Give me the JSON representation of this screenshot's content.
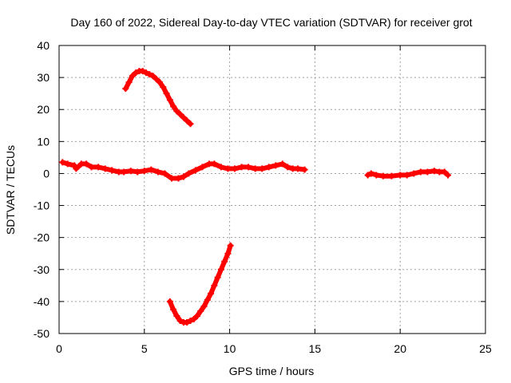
{
  "chart_data": {
    "type": "scatter",
    "title": "Day 160 of 2022, Sidereal Day-to-day VTEC variation (SDTVAR) for receiver grot",
    "xlabel": "GPS time / hours",
    "ylabel": "SDTVAR / TECUs",
    "xlim": [
      0,
      25
    ],
    "ylim": [
      -50,
      40
    ],
    "xticks": [
      0,
      5,
      10,
      15,
      20,
      25
    ],
    "yticks": [
      -50,
      -40,
      -30,
      -20,
      -10,
      0,
      10,
      20,
      30,
      40
    ],
    "grid": true,
    "marker_color": "#ff0000",
    "series": [
      {
        "name": "segment-near-zero-1",
        "x": [
          0.2,
          0.5,
          0.9,
          1.0,
          1.3,
          1.6,
          1.9,
          2.3,
          2.7,
          3.1,
          3.5,
          3.8,
          4.2,
          4.6,
          5.0,
          5.4,
          5.8,
          6.2,
          6.6,
          7.0,
          7.3,
          7.6,
          8.0,
          8.4,
          8.8,
          9.1,
          9.5,
          9.9,
          10.3,
          10.7,
          11.1,
          11.5,
          11.9,
          12.3,
          12.7,
          13.1,
          13.4,
          13.7,
          14.0,
          14.4
        ],
        "y": [
          3.5,
          3.0,
          2.5,
          1.5,
          3.0,
          3.0,
          2.0,
          2.0,
          1.5,
          1.0,
          0.5,
          0.5,
          0.8,
          0.5,
          0.8,
          1.2,
          0.5,
          0.0,
          -1.5,
          -1.5,
          -1.0,
          0.0,
          1.0,
          2.0,
          3.0,
          3.0,
          2.0,
          1.5,
          1.5,
          2.0,
          2.0,
          1.5,
          1.5,
          2.0,
          2.5,
          3.0,
          2.0,
          1.5,
          1.5,
          1.2
        ]
      },
      {
        "name": "segment-near-zero-2",
        "x": [
          18.1,
          18.3,
          18.6,
          19.0,
          19.5,
          20.0,
          20.4,
          20.8,
          21.2,
          21.6,
          22.0,
          22.3,
          22.6,
          22.8
        ],
        "y": [
          -0.5,
          0.0,
          -0.5,
          -0.8,
          -0.8,
          -0.5,
          -0.5,
          0.0,
          0.5,
          0.5,
          0.8,
          0.5,
          0.5,
          -0.5
        ]
      },
      {
        "name": "arc-upper",
        "x": [
          3.9,
          4.1,
          4.3,
          4.5,
          4.7,
          4.9,
          5.1,
          5.3,
          5.5,
          5.7,
          5.9,
          6.1,
          6.3,
          6.5,
          6.7,
          6.9,
          7.1,
          7.3,
          7.5,
          7.7
        ],
        "y": [
          26.5,
          28.5,
          30.5,
          31.5,
          32.0,
          32.0,
          31.5,
          31.0,
          30.5,
          29.5,
          28.5,
          27.0,
          25.0,
          23.0,
          21.0,
          19.5,
          18.5,
          17.5,
          16.5,
          15.5
        ]
      },
      {
        "name": "arc-lower",
        "x": [
          6.5,
          6.7,
          6.9,
          7.1,
          7.3,
          7.5,
          7.7,
          7.9,
          8.1,
          8.3,
          8.5,
          8.7,
          8.9,
          9.1,
          9.3,
          9.5,
          9.7,
          9.9,
          10.05
        ],
        "y": [
          -40.0,
          -42.5,
          -44.5,
          -46.0,
          -46.5,
          -46.5,
          -46.0,
          -45.5,
          -44.5,
          -43.0,
          -41.5,
          -39.5,
          -37.5,
          -35.0,
          -32.5,
          -30.0,
          -27.5,
          -25.0,
          -22.5
        ]
      }
    ]
  }
}
